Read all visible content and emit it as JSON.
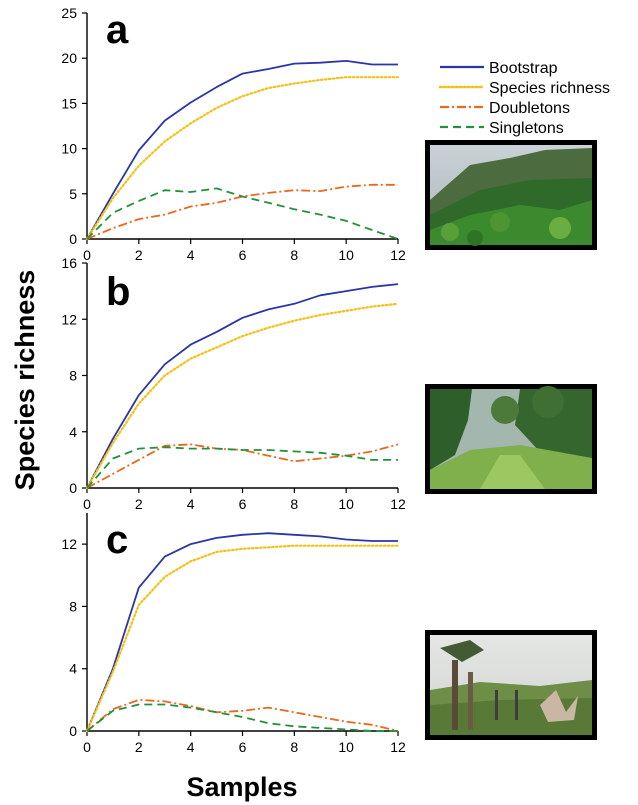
{
  "colors": {
    "bootstrap": "#2b35a6",
    "species_richness": "#f2c21b",
    "doubletons": "#e8691e",
    "singletons": "#23913a"
  },
  "chart_data": [
    {
      "type": "line",
      "panel": "a",
      "ylabel": "Species richness",
      "xlabel": "Samples",
      "xlim": [
        0,
        12
      ],
      "ylim": [
        0,
        25
      ],
      "x_ticks": [
        0,
        2,
        4,
        6,
        8,
        10,
        12
      ],
      "y_ticks": [
        0,
        5,
        10,
        15,
        20,
        25
      ],
      "x": [
        0,
        1,
        2,
        3,
        4,
        5,
        6,
        7,
        8,
        9,
        10,
        11,
        12
      ],
      "series": [
        {
          "name": "Bootstrap",
          "key": "bootstrap",
          "style": "solid",
          "values": [
            0,
            5,
            9.8,
            13.1,
            15.1,
            16.8,
            18.3,
            18.8,
            19.4,
            19.5,
            19.7,
            19.3,
            19.3
          ]
        },
        {
          "name": "Species richness",
          "key": "species_richness",
          "style": "dotted",
          "values": [
            0,
            4.5,
            8.1,
            10.8,
            12.8,
            14.5,
            15.8,
            16.7,
            17.2,
            17.6,
            17.9,
            17.9,
            17.9
          ]
        },
        {
          "name": "Doubletons",
          "key": "doubletons",
          "style": "dashdot",
          "values": [
            0,
            1.2,
            2.2,
            2.7,
            3.6,
            4.0,
            4.7,
            5.1,
            5.4,
            5.3,
            5.8,
            6.0,
            6.0
          ]
        },
        {
          "name": "Singletons",
          "key": "singletons",
          "style": "dashed",
          "values": [
            0,
            2.9,
            4.2,
            5.4,
            5.2,
            5.6,
            4.7,
            4.0,
            3.3,
            2.7,
            2.0,
            1.0,
            0
          ]
        }
      ]
    },
    {
      "type": "line",
      "panel": "b",
      "xlim": [
        0,
        12
      ],
      "ylim": [
        0,
        16
      ],
      "x_ticks": [
        0,
        2,
        4,
        6,
        8,
        10,
        12
      ],
      "y_ticks": [
        0,
        4,
        8,
        12,
        16
      ],
      "x": [
        0,
        1,
        2,
        3,
        4,
        5,
        6,
        7,
        8,
        9,
        10,
        11,
        12
      ],
      "series": [
        {
          "name": "Bootstrap",
          "key": "bootstrap",
          "style": "solid",
          "values": [
            0,
            3.5,
            6.6,
            8.8,
            10.2,
            11.1,
            12.1,
            12.7,
            13.1,
            13.7,
            14.0,
            14.3,
            14.5
          ]
        },
        {
          "name": "Species richness",
          "key": "species_richness",
          "style": "dotted",
          "values": [
            0,
            3.2,
            6.0,
            8.0,
            9.2,
            10.0,
            10.8,
            11.4,
            11.9,
            12.3,
            12.6,
            12.9,
            13.1
          ]
        },
        {
          "name": "Doubletons",
          "key": "doubletons",
          "style": "dashdot",
          "values": [
            0,
            1.0,
            2.0,
            3.0,
            3.1,
            2.8,
            2.7,
            2.3,
            1.9,
            2.1,
            2.3,
            2.6,
            3.1
          ]
        },
        {
          "name": "Singletons",
          "key": "singletons",
          "style": "dashed",
          "values": [
            0,
            2.1,
            2.8,
            2.9,
            2.8,
            2.8,
            2.7,
            2.7,
            2.6,
            2.5,
            2.3,
            2.0,
            2.0
          ]
        }
      ]
    },
    {
      "type": "line",
      "panel": "c",
      "xlim": [
        0,
        12
      ],
      "ylim": [
        0,
        14
      ],
      "x_ticks": [
        0,
        2,
        4,
        6,
        8,
        10,
        12
      ],
      "y_ticks": [
        0,
        4,
        8,
        12
      ],
      "x": [
        0,
        1,
        2,
        3,
        4,
        5,
        6,
        7,
        8,
        9,
        10,
        11,
        12
      ],
      "series": [
        {
          "name": "Bootstrap",
          "key": "bootstrap",
          "style": "solid",
          "values": [
            0,
            4.0,
            9.2,
            11.2,
            12.0,
            12.4,
            12.6,
            12.7,
            12.6,
            12.5,
            12.3,
            12.2,
            12.2
          ]
        },
        {
          "name": "Species richness",
          "key": "species_richness",
          "style": "dotted",
          "values": [
            0,
            3.8,
            8.1,
            9.9,
            10.9,
            11.5,
            11.7,
            11.8,
            11.9,
            11.9,
            11.9,
            11.9,
            11.9
          ]
        },
        {
          "name": "Doubletons",
          "key": "doubletons",
          "style": "dashdot",
          "values": [
            0,
            1.4,
            2.0,
            1.9,
            1.6,
            1.2,
            1.3,
            1.5,
            1.2,
            0.9,
            0.6,
            0.4,
            0
          ]
        },
        {
          "name": "Singletons",
          "key": "singletons",
          "style": "dashed",
          "values": [
            0,
            1.3,
            1.7,
            1.7,
            1.5,
            1.2,
            0.9,
            0.5,
            0.3,
            0.2,
            0.1,
            0.0,
            0
          ]
        }
      ]
    }
  ],
  "legend": {
    "position": "right",
    "items": [
      {
        "label": "Bootstrap",
        "key": "bootstrap",
        "style": "solid"
      },
      {
        "label": "Species richness",
        "key": "species_richness",
        "style": "dotted"
      },
      {
        "label": "Doubletons",
        "key": "doubletons",
        "style": "dashdot"
      },
      {
        "label": "Singletons",
        "key": "singletons",
        "style": "dashed"
      }
    ]
  },
  "photos": [
    {
      "panel": "a",
      "scene": "forested-hillside"
    },
    {
      "panel": "b",
      "scene": "forest-clearing-path"
    },
    {
      "panel": "c",
      "scene": "pasture-with-trees"
    }
  ],
  "labels": {
    "ylabel": "Species richness",
    "xlabel": "Samples",
    "panel_a": "a",
    "panel_b": "b",
    "panel_c": "c"
  }
}
